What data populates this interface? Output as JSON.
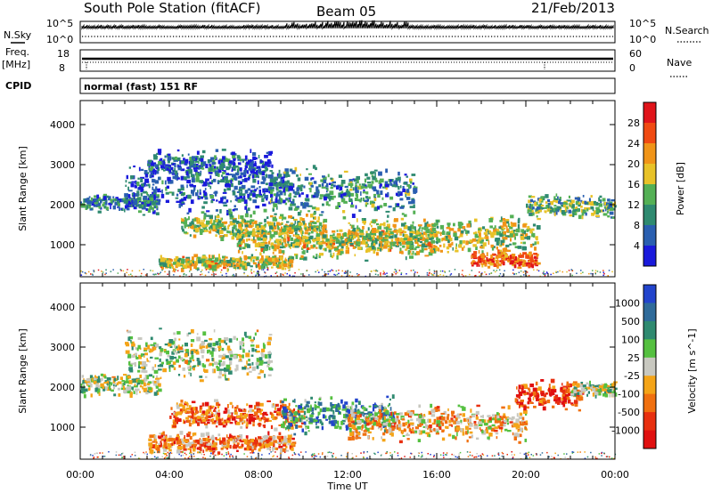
{
  "header": {
    "station": "South Pole Station (fitACF)",
    "beam": "Beam 05",
    "date": "21/Feb/2013"
  },
  "top_panels": {
    "nsky_label": "N.Sky",
    "nsky_ticks": [
      "10^5",
      "10^0"
    ],
    "nsearch_label": "N.Search",
    "nsearch_ticks": [
      "10^5",
      "10^0"
    ],
    "freq_label_top": "Freq.",
    "freq_label_unit": "[MHz]",
    "freq_ticks": [
      "18",
      "8"
    ],
    "nave_label": "Nave",
    "nave_ticks": [
      "60",
      "0"
    ],
    "cpid_label": "CPID",
    "cpid_text": "normal (fast) 151 RF"
  },
  "chart_data": [
    {
      "type": "heatmap",
      "title": "",
      "quantity": "power",
      "ylabel": "Slant Range [km]",
      "y_ticks": [
        "1000",
        "2000",
        "3000",
        "4000"
      ],
      "ylim": [
        200,
        4600
      ],
      "colorbar_label": "Power [dB]",
      "colorbar_ticks": [
        "4",
        "8",
        "12",
        "16",
        "20",
        "24",
        "28"
      ],
      "colorbar_range": [
        0,
        32
      ],
      "colorbar_colors": [
        "#1a1adc",
        "#2a5fb0",
        "#2f8a70",
        "#54b055",
        "#e8c228",
        "#f09418",
        "#f04a12",
        "#e0141a"
      ],
      "echo_bands": [
        {
          "t_start": 0.0,
          "t_end": 3.5,
          "r_center": 2050,
          "r_width": 250,
          "level": 0.25
        },
        {
          "t_start": 2.0,
          "t_end": 9.5,
          "r_center": 2400,
          "r_width": 700,
          "level": 0.2
        },
        {
          "t_start": 3.0,
          "t_end": 8.5,
          "r_center": 3000,
          "r_width": 400,
          "level": 0.2
        },
        {
          "t_start": 4.5,
          "t_end": 11.0,
          "r_center": 1450,
          "r_width": 350,
          "level": 0.5
        },
        {
          "t_start": 3.5,
          "t_end": 9.5,
          "r_center": 550,
          "r_width": 200,
          "level": 0.55
        },
        {
          "t_start": 7.0,
          "t_end": 16.0,
          "r_center": 1050,
          "r_width": 450,
          "level": 0.55
        },
        {
          "t_start": 12.0,
          "t_end": 20.5,
          "r_center": 1250,
          "r_width": 500,
          "level": 0.5
        },
        {
          "t_start": 17.5,
          "t_end": 20.5,
          "r_center": 650,
          "r_width": 250,
          "level": 0.8
        },
        {
          "t_start": 20.0,
          "t_end": 24.0,
          "r_center": 1950,
          "r_width": 300,
          "level": 0.4
        },
        {
          "t_start": 8.5,
          "t_end": 15.0,
          "r_center": 2300,
          "r_width": 700,
          "level": 0.3
        }
      ]
    },
    {
      "type": "heatmap",
      "title": "",
      "quantity": "velocity",
      "xlabel": "Time UT",
      "x_ticks": [
        "00:00",
        "04:00",
        "08:00",
        "12:00",
        "16:00",
        "20:00",
        "00:00"
      ],
      "xlim": [
        0,
        24
      ],
      "ylabel": "Slant Range [km]",
      "y_ticks": [
        "1000",
        "2000",
        "3000",
        "4000"
      ],
      "ylim": [
        200,
        4600
      ],
      "colorbar_label": "Velocity [m s^-1]",
      "colorbar_ticks": [
        "1000",
        "500",
        "100",
        "25",
        "-25",
        "-100",
        "-500",
        "-1000"
      ],
      "colorbar_colors": [
        "#2244cc",
        "#2f6b9a",
        "#2f8a70",
        "#55c040",
        "#c8c8c0",
        "#f4a418",
        "#f07010",
        "#e83010",
        "#e01010"
      ],
      "echo_bands": [
        {
          "t_start": 0.0,
          "t_end": 3.5,
          "r_center": 2050,
          "r_width": 300,
          "level": 0.45
        },
        {
          "t_start": 2.0,
          "t_end": 8.5,
          "r_center": 2800,
          "r_width": 700,
          "level": 0.45
        },
        {
          "t_start": 3.0,
          "t_end": 9.5,
          "r_center": 600,
          "r_width": 300,
          "level": 0.7
        },
        {
          "t_start": 4.0,
          "t_end": 10.0,
          "r_center": 1300,
          "r_width": 400,
          "level": 0.75
        },
        {
          "t_start": 9.0,
          "t_end": 14.0,
          "r_center": 1300,
          "r_width": 500,
          "level": 0.25
        },
        {
          "t_start": 12.0,
          "t_end": 20.0,
          "r_center": 1100,
          "r_width": 500,
          "level": 0.6
        },
        {
          "t_start": 19.5,
          "t_end": 22.5,
          "r_center": 1800,
          "r_width": 400,
          "level": 0.85
        },
        {
          "t_start": 22.0,
          "t_end": 24.0,
          "r_center": 1950,
          "r_width": 200,
          "level": 0.45
        }
      ]
    }
  ]
}
